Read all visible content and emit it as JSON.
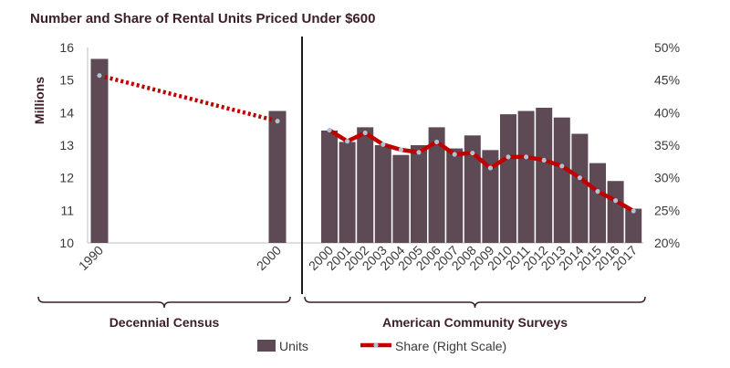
{
  "chart_data": {
    "type": "bar+line",
    "title": "Number and Share of Rental Units Priced Under $600",
    "ylabel": "Millions",
    "ylim": [
      10,
      16
    ],
    "y_ticks": [
      "10",
      "11",
      "12",
      "13",
      "14",
      "15",
      "16"
    ],
    "y2lim": [
      20,
      50
    ],
    "y2_ticks": [
      "20%",
      "25%",
      "30%",
      "35%",
      "40%",
      "45%",
      "50%"
    ],
    "groups": [
      {
        "name": "Decennial Census",
        "categories": [
          "1990",
          "2000"
        ],
        "units": [
          15.65,
          14.05
        ],
        "share": [
          45.7,
          38.7
        ]
      },
      {
        "name": "American Community Surveys",
        "categories": [
          "2000",
          "2001",
          "2002",
          "2003",
          "2004",
          "2005",
          "2006",
          "2007",
          "2008",
          "2009",
          "2010",
          "2011",
          "2012",
          "2013",
          "2014",
          "2015",
          "2016",
          "2017"
        ],
        "units": [
          13.45,
          13.1,
          13.55,
          13.0,
          12.7,
          13.0,
          13.55,
          12.9,
          13.3,
          12.85,
          13.95,
          14.05,
          14.15,
          13.85,
          13.35,
          12.45,
          11.9,
          11.05
        ],
        "share": [
          37.3,
          35.6,
          36.9,
          35.1,
          34.3,
          33.9,
          35.5,
          33.6,
          33.8,
          31.5,
          33.2,
          33.2,
          32.7,
          31.8,
          30.0,
          27.9,
          26.5,
          24.9
        ]
      }
    ],
    "series": [
      {
        "name": "Units",
        "type": "bar",
        "axis": "left",
        "color": "#5e4a55"
      },
      {
        "name": "Share (Right Scale)",
        "type": "line",
        "axis": "right",
        "color": "#c00000"
      }
    ],
    "legend": [
      "Units",
      "Share (Right Scale)"
    ],
    "legend_position": "bottom",
    "grid": false
  }
}
